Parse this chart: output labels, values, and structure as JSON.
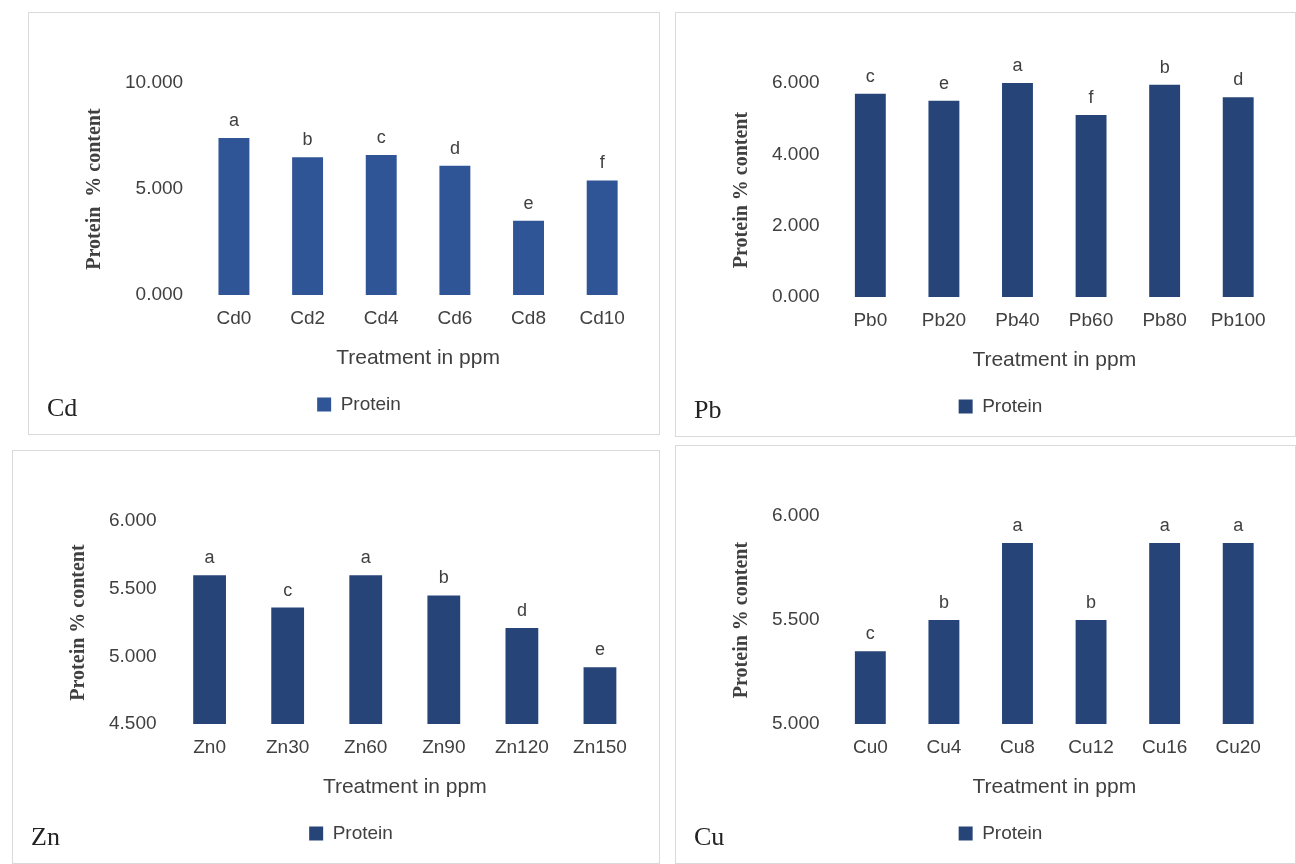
{
  "chart_data": [
    {
      "type": "bar",
      "categories": [
        "Cd0",
        "Cd2",
        "Cd4",
        "Cd6",
        "Cd8",
        "Cd10"
      ],
      "series": [
        {
          "name": "Protein",
          "color": "#2f5597",
          "values": [
            7.4,
            6.5,
            6.6,
            6.1,
            3.5,
            5.4
          ],
          "value_labels": [
            "a",
            "b",
            "c",
            "d",
            "e",
            "f"
          ]
        }
      ],
      "xlabel": "Treatment in ppm",
      "ylabel": "Protein  % content",
      "ylim": [
        0,
        10
      ],
      "yticks": [
        {
          "value": 0,
          "label": "0.000"
        },
        {
          "value": 5,
          "label": "5.000"
        },
        {
          "value": 10,
          "label": "10.000"
        }
      ],
      "grid": false,
      "legend": "bottom",
      "annotations": [
        "Cd"
      ]
    },
    {
      "type": "bar",
      "categories": [
        "Pb0",
        "Pb20",
        "Pb40",
        "Pb60",
        "Pb80",
        "Pb100"
      ],
      "series": [
        {
          "name": "Protein",
          "color": "#264478",
          "values": [
            5.7,
            5.5,
            6.0,
            5.1,
            5.95,
            5.6
          ],
          "value_labels": [
            "c",
            "e",
            "a",
            "f",
            "b",
            "d"
          ]
        }
      ],
      "xlabel": "Treatment in ppm",
      "ylabel": "Protein % content",
      "ylim": [
        0,
        6
      ],
      "yticks": [
        {
          "value": 0,
          "label": "0.000"
        },
        {
          "value": 2,
          "label": "2.000"
        },
        {
          "value": 4,
          "label": "4.000"
        },
        {
          "value": 6,
          "label": "6.000"
        }
      ],
      "grid": false,
      "legend": "bottom",
      "annotations": [
        "Pb"
      ]
    },
    {
      "type": "bar",
      "categories": [
        "Zn0",
        "Zn30",
        "Zn60",
        "Zn90",
        "Zn120",
        "Zn150"
      ],
      "series": [
        {
          "name": "Protein",
          "color": "#264478",
          "values": [
            5.6,
            5.36,
            5.6,
            5.45,
            5.21,
            4.92
          ],
          "value_labels": [
            "a",
            "c",
            "a",
            "b",
            "d",
            "e"
          ]
        }
      ],
      "xlabel": "Treatment in ppm",
      "ylabel": "Protein % content",
      "ylim": [
        4.5,
        6.0
      ],
      "yticks": [
        {
          "value": 4.5,
          "label": "4.500"
        },
        {
          "value": 5,
          "label": "5.000"
        },
        {
          "value": 5.5,
          "label": "5.500"
        },
        {
          "value": 6,
          "label": "6.000"
        }
      ],
      "grid": false,
      "legend": "bottom",
      "annotations": [
        "Zn"
      ]
    },
    {
      "type": "bar",
      "categories": [
        "Cu0",
        "Cu4",
        "Cu8",
        "Cu12",
        "Cu16",
        "Cu20"
      ],
      "series": [
        {
          "name": "Protein",
          "color": "#264478",
          "values": [
            5.35,
            5.5,
            5.87,
            5.5,
            5.87,
            5.87
          ],
          "value_labels": [
            "c",
            "b",
            "a",
            "b",
            "a",
            "a"
          ]
        }
      ],
      "xlabel": "Treatment in ppm",
      "ylabel": "Protein % content",
      "ylim": [
        5.0,
        6.0
      ],
      "yticks": [
        {
          "value": 5,
          "label": "5.000"
        },
        {
          "value": 5.5,
          "label": "5.500"
        },
        {
          "value": 6,
          "label": "6.000"
        }
      ],
      "grid": false,
      "legend": "bottom",
      "annotations": [
        "Cu"
      ]
    }
  ]
}
